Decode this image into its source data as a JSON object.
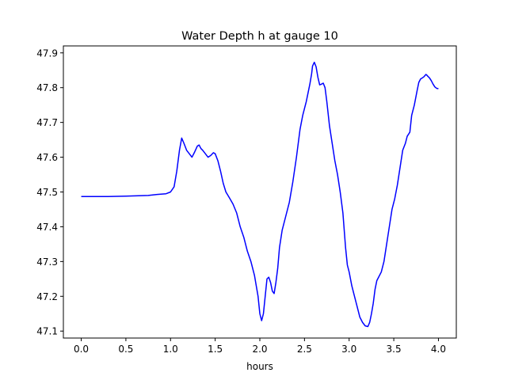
{
  "chart_data": {
    "type": "line",
    "title": "Water Depth h at gauge 10",
    "xlabel": "hours",
    "ylabel": "",
    "xlim": [
      -0.2,
      4.2
    ],
    "ylim": [
      47.08,
      47.92
    ],
    "xticks": [
      0.0,
      0.5,
      1.0,
      1.5,
      2.0,
      2.5,
      3.0,
      3.5,
      4.0
    ],
    "xtick_labels": [
      "0.0",
      "0.5",
      "1.0",
      "1.5",
      "2.0",
      "2.5",
      "3.0",
      "3.5",
      "4.0"
    ],
    "yticks": [
      47.1,
      47.2,
      47.3,
      47.4,
      47.5,
      47.6,
      47.7,
      47.8,
      47.9
    ],
    "ytick_labels": [
      "47.1",
      "47.2",
      "47.3",
      "47.4",
      "47.5",
      "47.6",
      "47.7",
      "47.8",
      "47.9"
    ],
    "grid": false,
    "series": [
      {
        "color": "#0000ff",
        "x": [
          0.0,
          0.3,
          0.5,
          0.75,
          0.85,
          0.95,
          1.0,
          1.04,
          1.07,
          1.1,
          1.125,
          1.15,
          1.18,
          1.21,
          1.24,
          1.27,
          1.3,
          1.32,
          1.34,
          1.36,
          1.39,
          1.42,
          1.45,
          1.48,
          1.5,
          1.53,
          1.56,
          1.59,
          1.62,
          1.66,
          1.7,
          1.74,
          1.78,
          1.82,
          1.86,
          1.9,
          1.94,
          1.96,
          1.98,
          2.0,
          2.02,
          2.04,
          2.06,
          2.08,
          2.1,
          2.12,
          2.14,
          2.16,
          2.18,
          2.2,
          2.22,
          2.25,
          2.29,
          2.33,
          2.37,
          2.41,
          2.45,
          2.48,
          2.5,
          2.52,
          2.54,
          2.56,
          2.58,
          2.59,
          2.61,
          2.63,
          2.65,
          2.67,
          2.69,
          2.71,
          2.73,
          2.75,
          2.78,
          2.81,
          2.84,
          2.87,
          2.9,
          2.93,
          2.96,
          2.98,
          3.0,
          3.03,
          3.06,
          3.09,
          3.12,
          3.15,
          3.18,
          3.21,
          3.23,
          3.25,
          3.27,
          3.29,
          3.31,
          3.33,
          3.36,
          3.39,
          3.42,
          3.45,
          3.48,
          3.51,
          3.54,
          3.57,
          3.6,
          3.63,
          3.65,
          3.68,
          3.7,
          3.73,
          3.76,
          3.78,
          3.8,
          3.82,
          3.84,
          3.86,
          3.87,
          3.88,
          3.9,
          3.92,
          3.94,
          3.96,
          3.98,
          4.0
        ],
        "y": [
          47.487,
          47.487,
          47.488,
          47.49,
          47.493,
          47.495,
          47.5,
          47.515,
          47.56,
          47.62,
          47.655,
          47.64,
          47.62,
          47.61,
          47.6,
          47.615,
          47.632,
          47.635,
          47.625,
          47.62,
          47.61,
          47.6,
          47.605,
          47.613,
          47.61,
          47.59,
          47.56,
          47.525,
          47.5,
          47.483,
          47.465,
          47.44,
          47.4,
          47.37,
          47.33,
          47.3,
          47.26,
          47.23,
          47.2,
          47.15,
          47.13,
          47.15,
          47.2,
          47.25,
          47.255,
          47.24,
          47.215,
          47.208,
          47.24,
          47.28,
          47.34,
          47.39,
          47.43,
          47.47,
          47.53,
          47.6,
          47.68,
          47.72,
          47.74,
          47.76,
          47.785,
          47.81,
          47.84,
          47.862,
          47.873,
          47.86,
          47.83,
          47.808,
          47.81,
          47.813,
          47.8,
          47.76,
          47.69,
          47.64,
          47.59,
          47.55,
          47.5,
          47.44,
          47.34,
          47.29,
          47.27,
          47.23,
          47.2,
          47.17,
          47.14,
          47.125,
          47.115,
          47.113,
          47.125,
          47.15,
          47.18,
          47.22,
          47.245,
          47.255,
          47.27,
          47.3,
          47.35,
          47.4,
          47.45,
          47.48,
          47.52,
          47.57,
          47.62,
          47.64,
          47.66,
          47.672,
          47.72,
          47.75,
          47.79,
          47.815,
          47.825,
          47.828,
          47.832,
          47.838,
          47.836,
          47.833,
          47.828,
          47.82,
          47.81,
          47.802,
          47.798,
          47.797
        ]
      }
    ]
  }
}
